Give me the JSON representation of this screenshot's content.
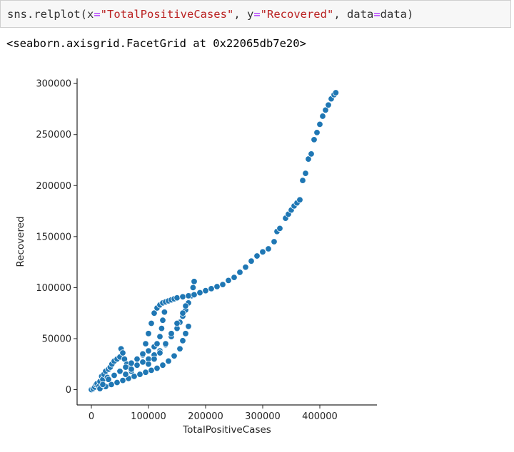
{
  "code_cell": {
    "tokens": [
      {
        "text": "sns.relplot(x",
        "cls": "tok-default"
      },
      {
        "text": "=",
        "cls": "tok-op"
      },
      {
        "text": "\"TotalPositiveCases\"",
        "cls": "tok-str"
      },
      {
        "text": ", y",
        "cls": "tok-default"
      },
      {
        "text": "=",
        "cls": "tok-op"
      },
      {
        "text": "\"Recovered\"",
        "cls": "tok-str"
      },
      {
        "text": ", data",
        "cls": "tok-default"
      },
      {
        "text": "=",
        "cls": "tok-op"
      },
      {
        "text": "data)",
        "cls": "tok-default"
      }
    ]
  },
  "output": {
    "text": "<seaborn.axisgrid.FacetGrid at 0x22065db7e20>"
  },
  "chart_data": {
    "type": "scatter",
    "xlabel": "TotalPositiveCases",
    "ylabel": "Recovered",
    "xlim": [
      -25000,
      500000
    ],
    "ylim": [
      -15000,
      305000
    ],
    "xticks": [
      0,
      100000,
      200000,
      300000,
      400000
    ],
    "yticks": [
      0,
      50000,
      100000,
      150000,
      200000,
      250000,
      300000
    ],
    "color": "#1f77b4",
    "points": [
      [
        0,
        0
      ],
      [
        3000,
        1000
      ],
      [
        6000,
        2500
      ],
      [
        8000,
        5000
      ],
      [
        10000,
        6000
      ],
      [
        13000,
        3000
      ],
      [
        15000,
        8000
      ],
      [
        18000,
        13000
      ],
      [
        20000,
        10000
      ],
      [
        22000,
        15000
      ],
      [
        25000,
        18000
      ],
      [
        28000,
        12000
      ],
      [
        30000,
        20000
      ],
      [
        33000,
        22000
      ],
      [
        36000,
        25000
      ],
      [
        40000,
        28000
      ],
      [
        45000,
        30000
      ],
      [
        50000,
        32000
      ],
      [
        52000,
        40000
      ],
      [
        55000,
        36000
      ],
      [
        58000,
        30000
      ],
      [
        62000,
        25000
      ],
      [
        66000,
        22000
      ],
      [
        70000,
        18000
      ],
      [
        15000,
        1000
      ],
      [
        25000,
        3000
      ],
      [
        35000,
        5000
      ],
      [
        45000,
        7000
      ],
      [
        55000,
        9000
      ],
      [
        65000,
        11000
      ],
      [
        75000,
        13000
      ],
      [
        85000,
        15000
      ],
      [
        95000,
        17000
      ],
      [
        105000,
        19000
      ],
      [
        115000,
        21000
      ],
      [
        125000,
        24000
      ],
      [
        135000,
        28000
      ],
      [
        145000,
        33000
      ],
      [
        155000,
        40000
      ],
      [
        160000,
        48000
      ],
      [
        165000,
        55000
      ],
      [
        170000,
        62000
      ],
      [
        60000,
        15000
      ],
      [
        70000,
        20000
      ],
      [
        80000,
        24000
      ],
      [
        90000,
        27000
      ],
      [
        100000,
        30000
      ],
      [
        110000,
        34000
      ],
      [
        120000,
        38000
      ],
      [
        130000,
        44000
      ],
      [
        140000,
        52000
      ],
      [
        150000,
        60000
      ],
      [
        155000,
        66000
      ],
      [
        160000,
        72000
      ],
      [
        165000,
        78000
      ],
      [
        170000,
        85000
      ],
      [
        175000,
        92000
      ],
      [
        178000,
        100000
      ],
      [
        180000,
        106000
      ],
      [
        20000,
        5000
      ],
      [
        30000,
        10000
      ],
      [
        40000,
        14000
      ],
      [
        50000,
        18000
      ],
      [
        60000,
        22000
      ],
      [
        70000,
        26000
      ],
      [
        80000,
        30000
      ],
      [
        90000,
        34000
      ],
      [
        100000,
        38000
      ],
      [
        110000,
        42000
      ],
      [
        115000,
        45000
      ],
      [
        120000,
        52000
      ],
      [
        123000,
        60000
      ],
      [
        125000,
        68000
      ],
      [
        128000,
        76000
      ],
      [
        100000,
        25000
      ],
      [
        110000,
        30000
      ],
      [
        120000,
        36000
      ],
      [
        130000,
        45000
      ],
      [
        140000,
        55000
      ],
      [
        150000,
        65000
      ],
      [
        160000,
        75000
      ],
      [
        165000,
        82000
      ],
      [
        90000,
        35000
      ],
      [
        95000,
        45000
      ],
      [
        100000,
        55000
      ],
      [
        105000,
        65000
      ],
      [
        110000,
        75000
      ],
      [
        115000,
        80000
      ],
      [
        120000,
        83000
      ],
      [
        125000,
        85000
      ],
      [
        130000,
        86000
      ],
      [
        135000,
        87000
      ],
      [
        140000,
        88000
      ],
      [
        145000,
        89000
      ],
      [
        150000,
        90000
      ],
      [
        160000,
        91000
      ],
      [
        170000,
        92000
      ],
      [
        180000,
        93000
      ],
      [
        190000,
        95000
      ],
      [
        200000,
        97000
      ],
      [
        210000,
        99000
      ],
      [
        220000,
        101000
      ],
      [
        230000,
        103000
      ],
      [
        240000,
        107000
      ],
      [
        250000,
        110000
      ],
      [
        260000,
        115000
      ],
      [
        270000,
        120000
      ],
      [
        280000,
        126000
      ],
      [
        290000,
        131000
      ],
      [
        300000,
        135000
      ],
      [
        310000,
        138000
      ],
      [
        320000,
        145000
      ],
      [
        325000,
        155000
      ],
      [
        330000,
        158000
      ],
      [
        340000,
        168000
      ],
      [
        345000,
        172000
      ],
      [
        350000,
        176000
      ],
      [
        355000,
        180000
      ],
      [
        360000,
        183000
      ],
      [
        365000,
        186000
      ],
      [
        370000,
        205000
      ],
      [
        375000,
        212000
      ],
      [
        380000,
        226000
      ],
      [
        385000,
        231000
      ],
      [
        390000,
        245000
      ],
      [
        395000,
        252000
      ],
      [
        400000,
        260000
      ],
      [
        405000,
        268000
      ],
      [
        410000,
        274000
      ],
      [
        415000,
        279000
      ],
      [
        420000,
        285000
      ],
      [
        425000,
        289000
      ],
      [
        428000,
        291000
      ]
    ]
  }
}
